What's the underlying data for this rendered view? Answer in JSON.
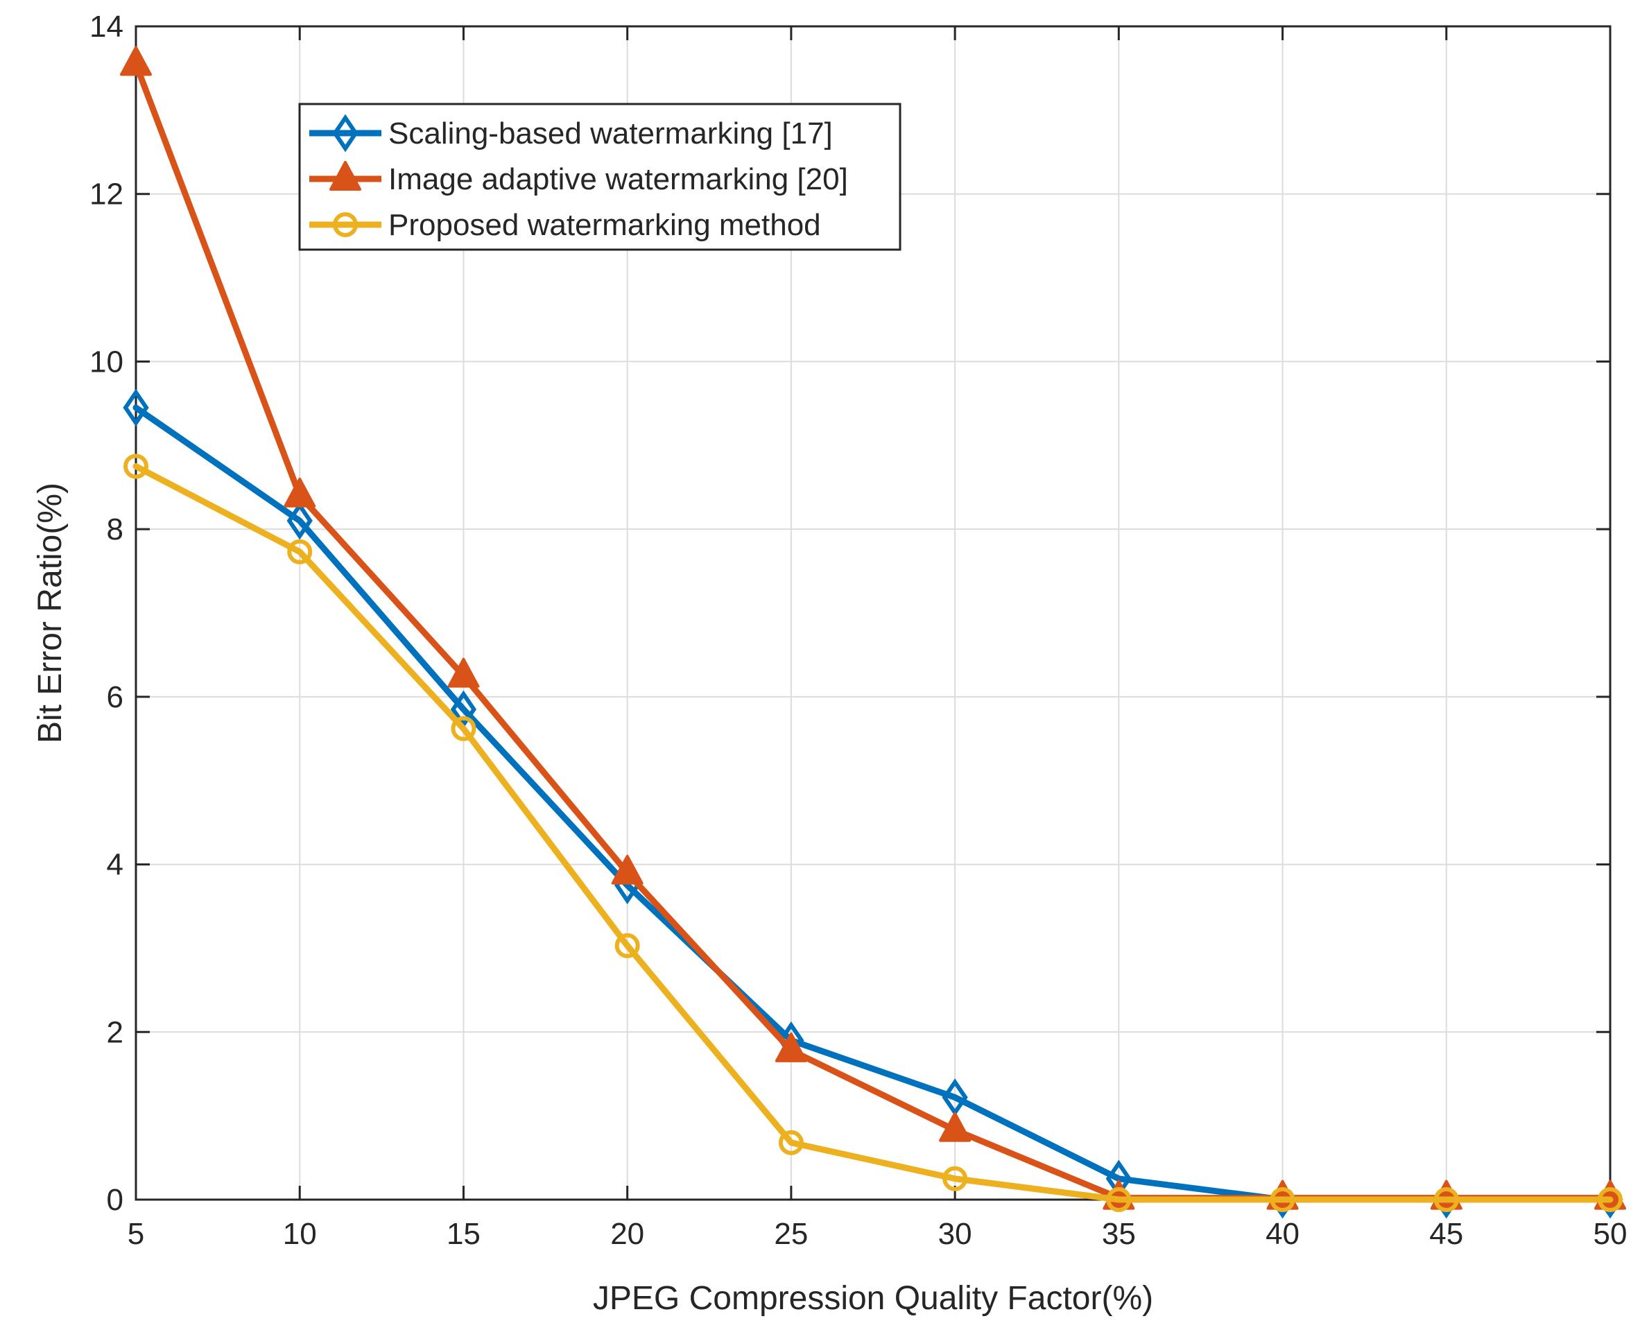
{
  "chart_data": {
    "type": "line",
    "title": "",
    "xlabel": "JPEG Compression Quality Factor(%)",
    "ylabel": "Bit Error Ratio(%)",
    "xlim": [
      5,
      50
    ],
    "ylim": [
      0,
      14
    ],
    "grid": true,
    "legend_position": "top-left",
    "x": [
      5,
      10,
      15,
      20,
      25,
      30,
      35,
      40,
      45,
      50
    ],
    "xticks": [
      5,
      10,
      15,
      20,
      25,
      30,
      35,
      40,
      45,
      50
    ],
    "yticks": [
      0,
      2,
      4,
      6,
      8,
      10,
      12,
      14
    ],
    "series": [
      {
        "name": "Scaling-based watermarking  [17]",
        "color": "#0072BD",
        "marker": "diamond",
        "values": [
          9.45,
          8.1,
          5.85,
          3.75,
          1.9,
          1.22,
          0.25,
          0.0,
          0.0,
          0.0
        ]
      },
      {
        "name": "Image adaptive watermarking [20]",
        "color": "#D95319",
        "marker": "triangle",
        "values": [
          13.55,
          8.4,
          6.25,
          3.9,
          1.78,
          0.83,
          0.02,
          0.02,
          0.02,
          0.02
        ]
      },
      {
        "name": "Proposed watermarking method",
        "color": "#EDB120",
        "marker": "circle",
        "values": [
          8.75,
          7.73,
          5.62,
          3.03,
          0.68,
          0.25,
          0.0,
          0.0,
          0.0,
          0.0
        ]
      }
    ]
  }
}
